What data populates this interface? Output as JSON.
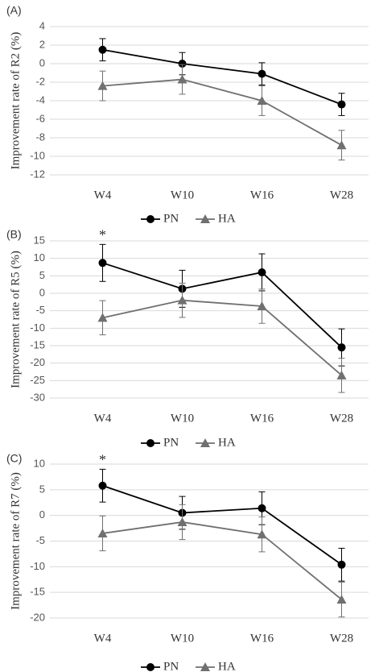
{
  "chart_data": [
    {
      "type": "line",
      "panel_label": "(A)",
      "y_label": "Improvement rate of R2 (%)",
      "categories": [
        "W4",
        "W10",
        "W16",
        "W28"
      ],
      "series": [
        {
          "name": "PN",
          "color": "#000000",
          "marker": "circle",
          "values": [
            1.5,
            0,
            -1.1,
            -4.4
          ],
          "errors": [
            1.2,
            1.2,
            1.2,
            1.2
          ]
        },
        {
          "name": "HA",
          "color": "#707070",
          "marker": "triangle",
          "values": [
            -2.4,
            -1.7,
            -4.0,
            -8.8
          ],
          "errors": [
            1.6,
            1.6,
            1.6,
            1.6
          ]
        }
      ],
      "ylim": [
        -12,
        4
      ],
      "yticks": [
        4,
        2,
        0,
        -2,
        -4,
        -6,
        -8,
        -10,
        -12
      ],
      "grid": true,
      "legend": "bottom"
    },
    {
      "type": "line",
      "panel_label": "(B)",
      "y_label": "Improvement rate of R5 (%)",
      "categories": [
        "W4",
        "W10",
        "W16",
        "W28"
      ],
      "series": [
        {
          "name": "PN",
          "color": "#000000",
          "marker": "circle",
          "values": [
            8.7,
            1.3,
            6.0,
            -15.5
          ],
          "errors": [
            5.3,
            5.3,
            5.3,
            5.3
          ]
        },
        {
          "name": "HA",
          "color": "#707070",
          "marker": "triangle",
          "values": [
            -7.0,
            -2.0,
            -3.7,
            -23.5
          ],
          "errors": [
            4.9,
            4.9,
            4.9,
            4.9
          ]
        }
      ],
      "annotations": [
        {
          "text": "*",
          "x": "W4"
        }
      ],
      "ylim": [
        -30,
        15
      ],
      "yticks": [
        15,
        10,
        5,
        0,
        -5,
        -10,
        -15,
        -20,
        -25,
        -30
      ],
      "grid": true,
      "legend": "bottom"
    },
    {
      "type": "line",
      "panel_label": "(C)",
      "y_label": "Improvement rate of R7 (%)",
      "categories": [
        "W4",
        "W10",
        "W16",
        "W28"
      ],
      "series": [
        {
          "name": "PN",
          "color": "#000000",
          "marker": "circle",
          "values": [
            5.8,
            0.5,
            1.4,
            -9.6
          ],
          "errors": [
            3.2,
            3.2,
            3.2,
            3.2
          ]
        },
        {
          "name": "HA",
          "color": "#707070",
          "marker": "triangle",
          "values": [
            -3.5,
            -1.3,
            -3.7,
            -16.4
          ],
          "errors": [
            3.4,
            3.4,
            3.4,
            3.4
          ]
        }
      ],
      "annotations": [
        {
          "text": "*",
          "x": "W4"
        }
      ],
      "ylim": [
        -20,
        10
      ],
      "yticks": [
        10,
        5,
        0,
        -5,
        -10,
        -15,
        -20
      ],
      "grid": true,
      "legend": "bottom"
    }
  ]
}
